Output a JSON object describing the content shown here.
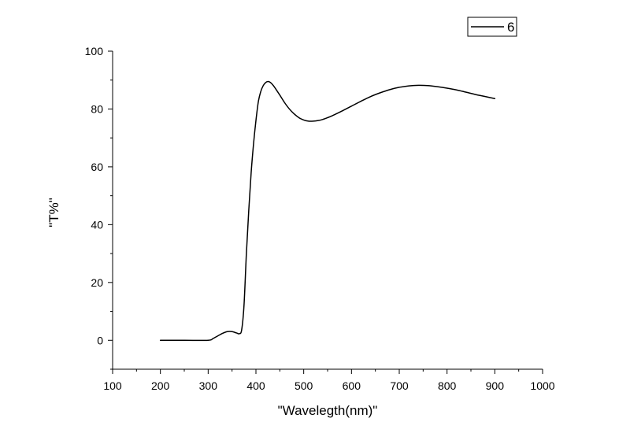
{
  "chart_data": {
    "type": "line",
    "title": "",
    "xlabel": "\"Wavelegth(nm)\"",
    "ylabel": "\"T%\"",
    "xlim": [
      100,
      1000
    ],
    "ylim": [
      -10,
      100
    ],
    "x_ticks": [
      100,
      200,
      300,
      400,
      500,
      600,
      700,
      800,
      900,
      1000
    ],
    "x_tick_labels": [
      "100",
      "200",
      "300",
      "400",
      "500",
      "600",
      "700",
      "800",
      "900",
      "1000"
    ],
    "y_ticks": [
      0,
      20,
      40,
      60,
      80,
      100
    ],
    "y_tick_labels": [
      "0",
      "20",
      "40",
      "60",
      "80",
      "100"
    ],
    "grid": false,
    "legend": {
      "position": "top-right",
      "entries": [
        "6"
      ]
    },
    "line_color": "#000000",
    "series": [
      {
        "name": "6",
        "x": [
          200,
          250,
          300,
          310,
          320,
          330,
          340,
          350,
          360,
          365,
          370,
          375,
          380,
          385,
          390,
          395,
          400,
          405,
          410,
          415,
          420,
          425,
          430,
          435,
          440,
          450,
          460,
          470,
          480,
          490,
          500,
          510,
          520,
          530,
          540,
          550,
          560,
          580,
          600,
          620,
          640,
          660,
          680,
          700,
          720,
          740,
          760,
          780,
          800,
          820,
          840,
          860,
          880,
          900
        ],
        "y": [
          0,
          0,
          0,
          0.6,
          1.5,
          2.4,
          3.0,
          3.0,
          2.5,
          2.3,
          3.5,
          12,
          30,
          45,
          58,
          68,
          76,
          82.5,
          86,
          88,
          89.1,
          89.5,
          89.2,
          88.4,
          87.3,
          84.8,
          82.2,
          80.0,
          78.3,
          77.0,
          76.2,
          75.8,
          75.8,
          76.0,
          76.4,
          77.0,
          77.7,
          79.3,
          81.0,
          82.7,
          84.3,
          85.6,
          86.7,
          87.5,
          88.0,
          88.2,
          88.1,
          87.7,
          87.2,
          86.6,
          85.8,
          85.0,
          84.3,
          83.6
        ]
      }
    ]
  }
}
